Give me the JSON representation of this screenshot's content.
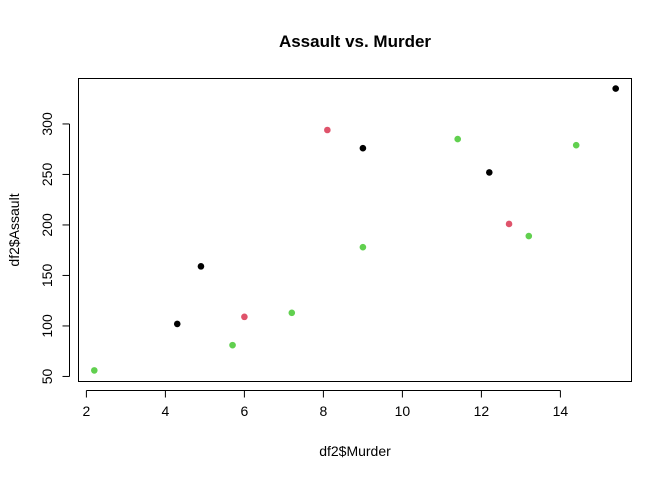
{
  "chart_data": {
    "type": "scatter",
    "title": "Assault vs. Murder",
    "xlabel": "df2$Murder",
    "ylabel": "df2$Assault",
    "xlim": [
      1.8,
      15.8
    ],
    "ylim": [
      45,
      345
    ],
    "xticks": [
      2,
      4,
      6,
      8,
      10,
      12,
      14
    ],
    "yticks": [
      50,
      100,
      150,
      200,
      250,
      300
    ],
    "grid": false,
    "legend": "none",
    "colors": {
      "black": "#000000",
      "red": "#DF536B",
      "green": "#61D04F"
    },
    "points": [
      {
        "x": 2.2,
        "y": 56,
        "color": "green"
      },
      {
        "x": 4.3,
        "y": 102,
        "color": "black"
      },
      {
        "x": 4.9,
        "y": 159,
        "color": "black"
      },
      {
        "x": 5.7,
        "y": 81,
        "color": "green"
      },
      {
        "x": 6.0,
        "y": 109,
        "color": "red"
      },
      {
        "x": 7.2,
        "y": 113,
        "color": "green"
      },
      {
        "x": 8.1,
        "y": 294,
        "color": "red"
      },
      {
        "x": 9.0,
        "y": 276,
        "color": "black"
      },
      {
        "x": 9.0,
        "y": 178,
        "color": "green"
      },
      {
        "x": 11.4,
        "y": 285,
        "color": "green"
      },
      {
        "x": 12.2,
        "y": 252,
        "color": "black"
      },
      {
        "x": 12.7,
        "y": 201,
        "color": "red"
      },
      {
        "x": 13.2,
        "y": 189,
        "color": "green"
      },
      {
        "x": 14.4,
        "y": 279,
        "color": "green"
      },
      {
        "x": 15.4,
        "y": 335,
        "color": "black"
      }
    ]
  }
}
